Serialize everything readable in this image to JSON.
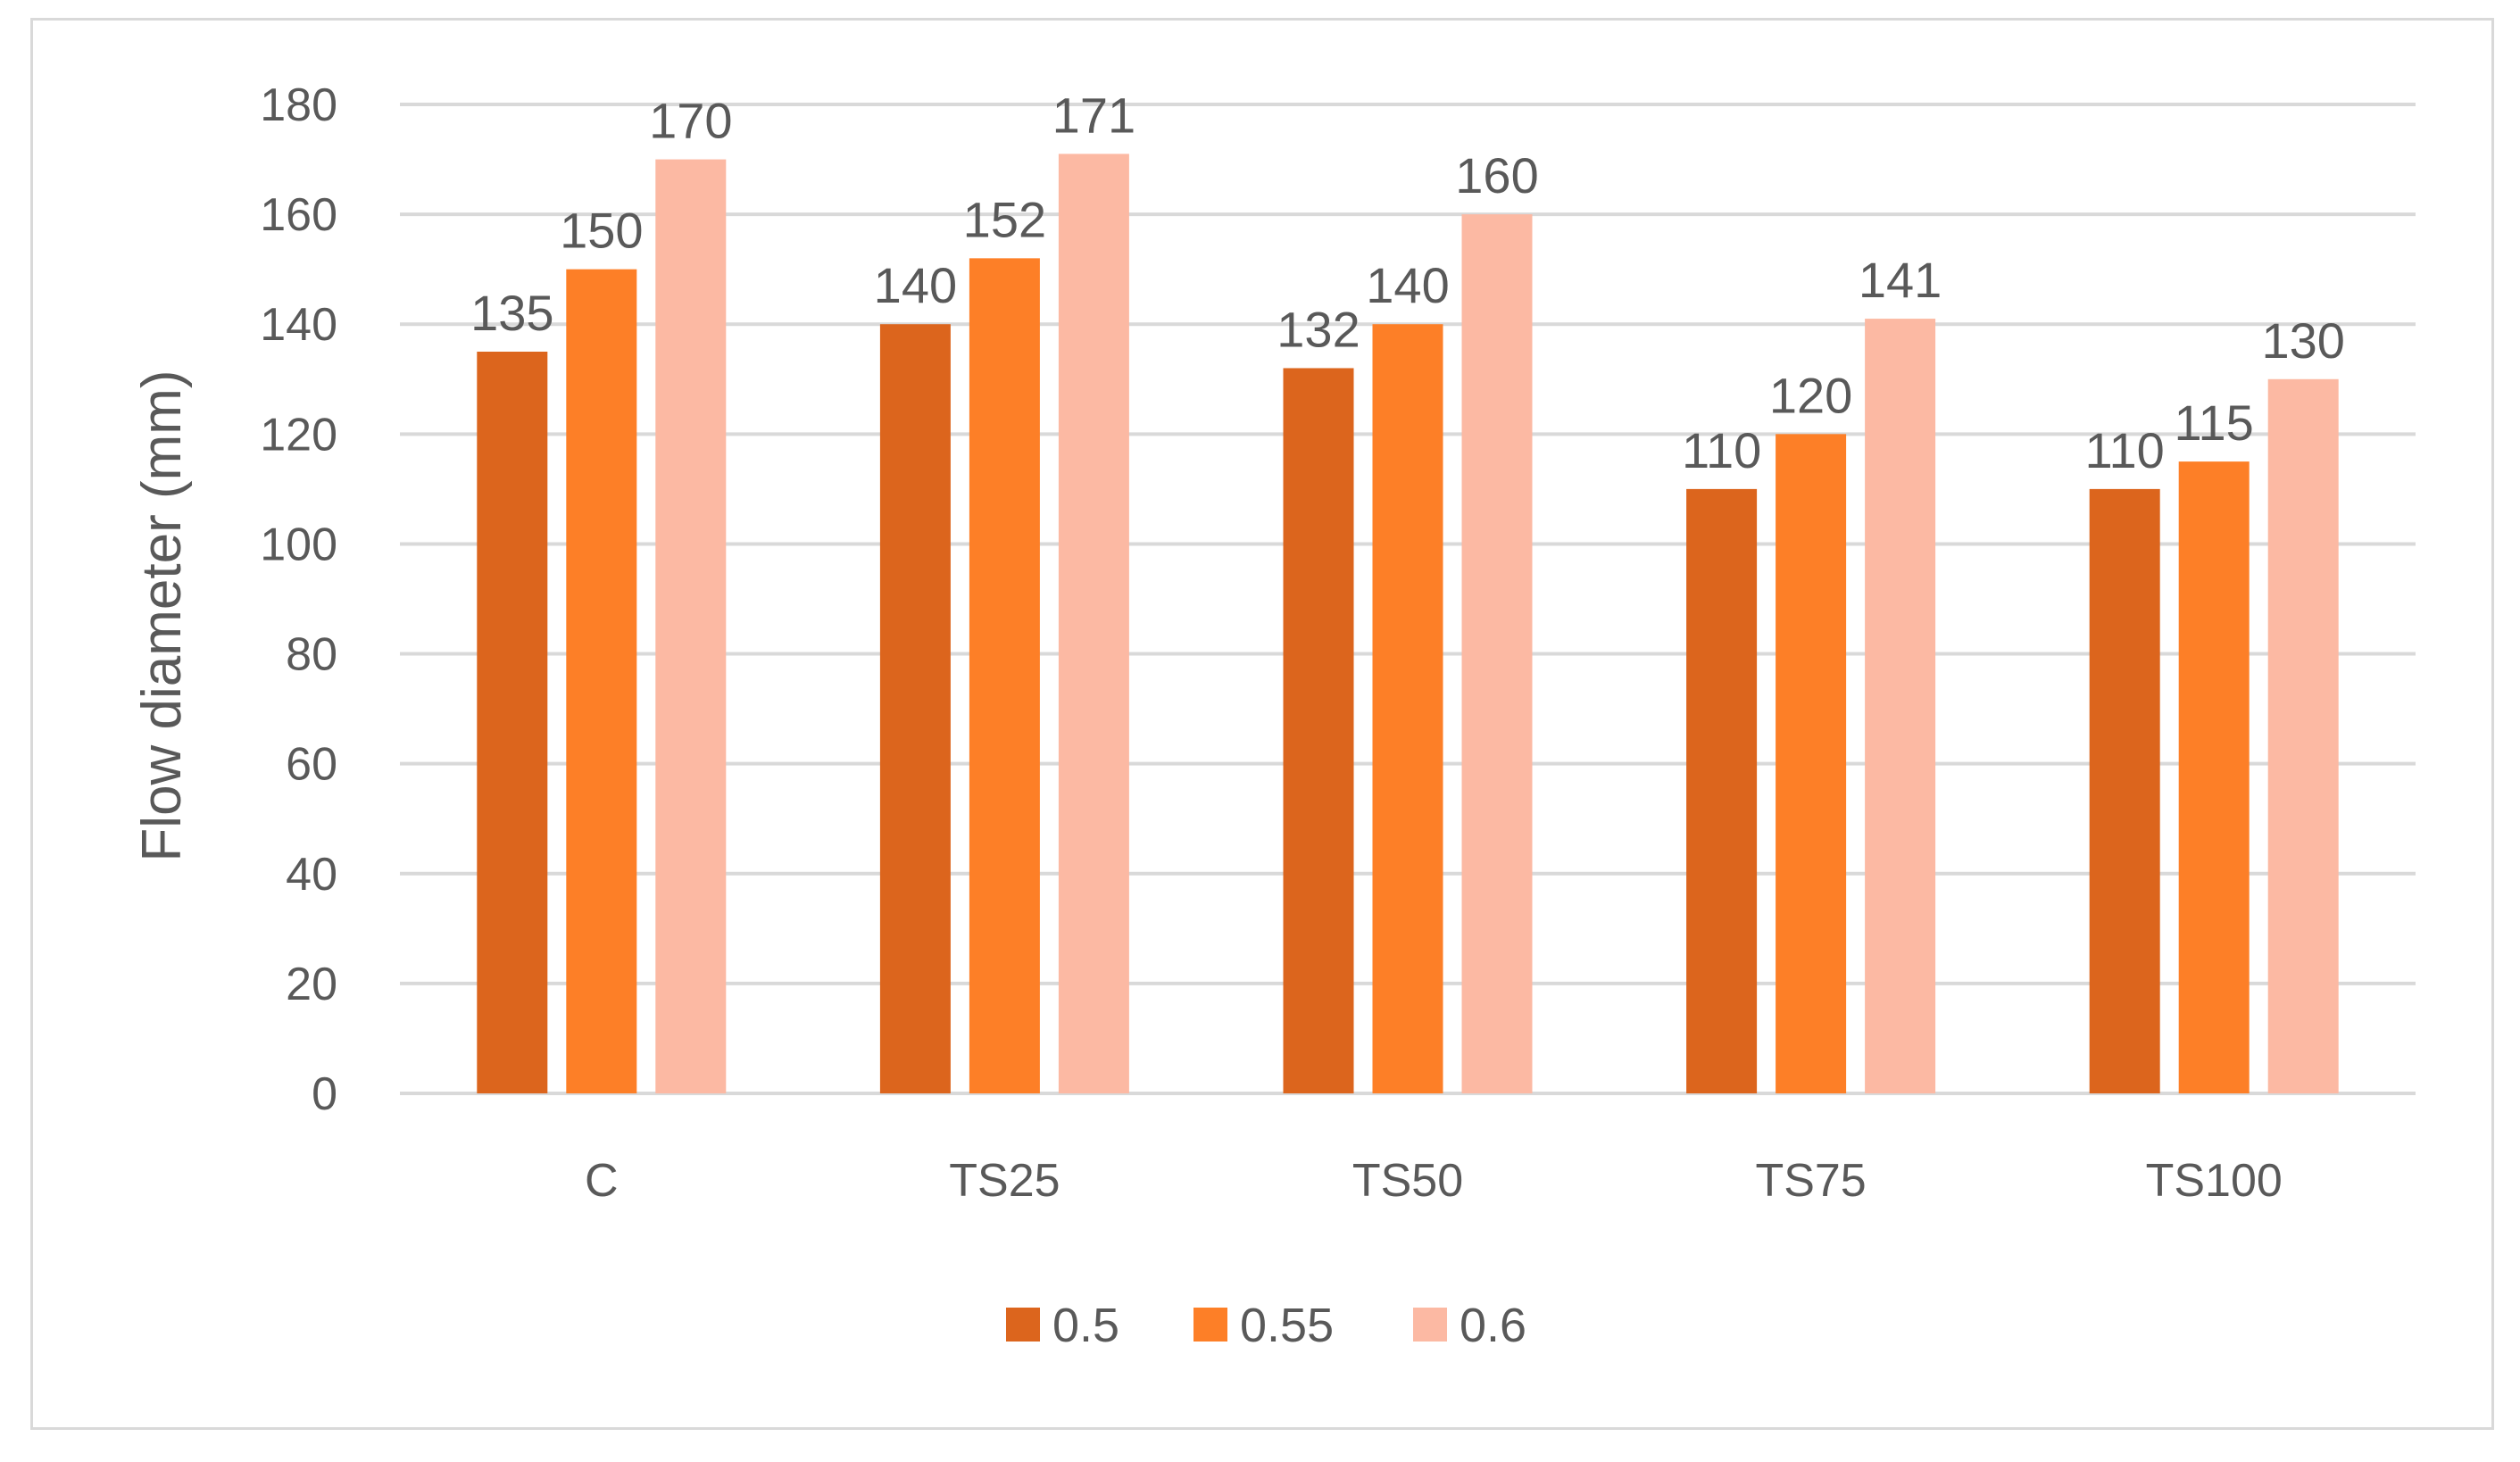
{
  "chart_data": {
    "type": "bar",
    "title": "",
    "xlabel": "",
    "ylabel": "Flow diameter (mm)",
    "ylim": [
      0,
      180
    ],
    "yticks": [
      0,
      20,
      40,
      60,
      80,
      100,
      120,
      140,
      160,
      180
    ],
    "grid": true,
    "legend_position": "bottom",
    "categories": [
      "C",
      "TS25",
      "TS50",
      "TS75",
      "TS100"
    ],
    "series": [
      {
        "name": "0.5",
        "color": "#dc651d",
        "values": [
          135,
          140,
          132,
          110,
          110
        ]
      },
      {
        "name": "0.55",
        "color": "#fd7f27",
        "values": [
          150,
          152,
          140,
          120,
          115
        ]
      },
      {
        "name": "0.6",
        "color": "#fcb9a3",
        "values": [
          170,
          171,
          160,
          141,
          130
        ]
      }
    ]
  }
}
